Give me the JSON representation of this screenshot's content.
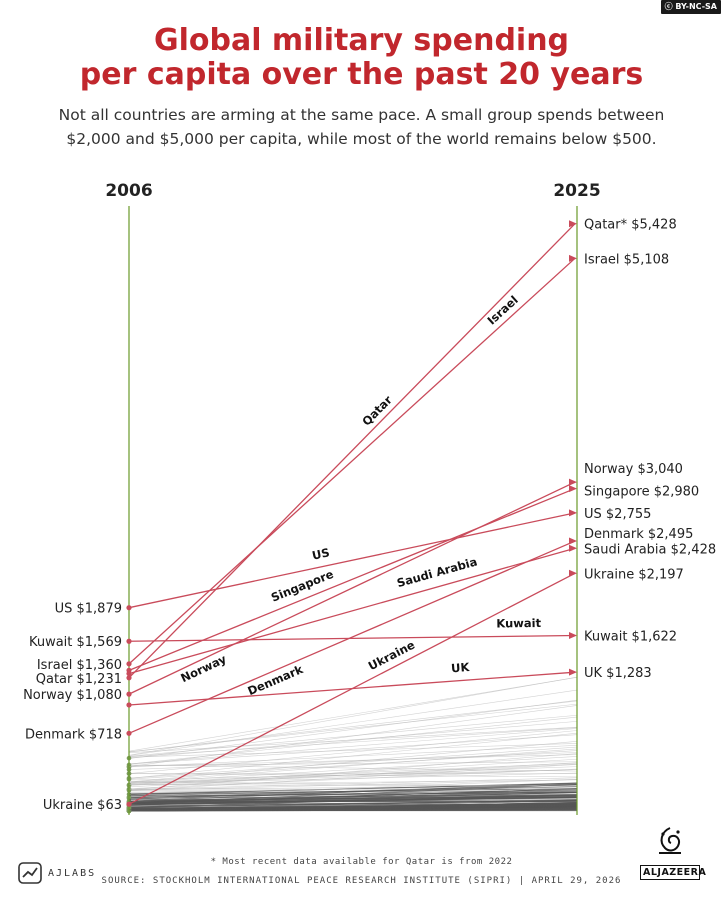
{
  "badge": "BY-NC-SA",
  "title": "Global military spending\nper capita over the past 20 years",
  "subtitle": "Not all countries are arming at the same pace. A small group spends between\n$2,000 and $5,000 per capita, while most of the world remains below $500.",
  "footnote": "* Most recent data available for Qatar is from 2022",
  "source": "SOURCE: STOCKHOLM INTERNATIONAL PEACE RESEARCH INSTITUTE (SIPRI)  |  APRIL 29, 2026",
  "logo_left": "AJLABS",
  "logo_right": "ALJAZEERA",
  "colors": {
    "highlight": "#c94b5b",
    "background_lines": "#b5b5b5",
    "axis": "#6a9a2a",
    "title": "#c1272d"
  },
  "chart_data": {
    "type": "line",
    "subtype": "slope",
    "x": [
      "2006",
      "2025"
    ],
    "unit": "USD per capita",
    "highlighted": [
      {
        "name": "Qatar",
        "label_start": "Qatar $1,231",
        "label_end": "Qatar* $5,428",
        "line_label": "Qatar",
        "values": [
          1231,
          5428
        ]
      },
      {
        "name": "Israel",
        "label_start": "Israel $1,360",
        "label_end": "Israel $5,108",
        "line_label": "Israel",
        "values": [
          1360,
          5108
        ]
      },
      {
        "name": "Norway",
        "label_start": "Norway $1,080",
        "label_end": "Norway $3,040",
        "line_label": "Norway",
        "values": [
          1080,
          3040
        ]
      },
      {
        "name": "Singapore",
        "label_start": "",
        "label_end": "Singapore $2,980",
        "line_label": "Singapore",
        "values": [
          1300,
          2980
        ]
      },
      {
        "name": "US",
        "label_start": "US $1,879",
        "label_end": "US $2,755",
        "line_label": "US",
        "values": [
          1879,
          2755
        ]
      },
      {
        "name": "Denmark",
        "label_start": "Denmark $718",
        "label_end": "Denmark $2,495",
        "line_label": "Denmark",
        "values": [
          718,
          2495
        ]
      },
      {
        "name": "Saudi Arabia",
        "label_start": "",
        "label_end": "Saudi Arabia $2,428",
        "line_label": "Saudi Arabia",
        "values": [
          1270,
          2428
        ]
      },
      {
        "name": "Ukraine",
        "label_start": "Ukraine $63",
        "label_end": "Ukraine $2,197",
        "line_label": "Ukraine",
        "values": [
          63,
          2197
        ]
      },
      {
        "name": "Kuwait",
        "label_start": "Kuwait $1,569",
        "label_end": "Kuwait $1,622",
        "line_label": "Kuwait",
        "values": [
          1569,
          1622
        ]
      },
      {
        "name": "UK",
        "label_start": "",
        "label_end": "UK $1,283",
        "line_label": "UK",
        "values": [
          980,
          1283
        ]
      }
    ]
  }
}
